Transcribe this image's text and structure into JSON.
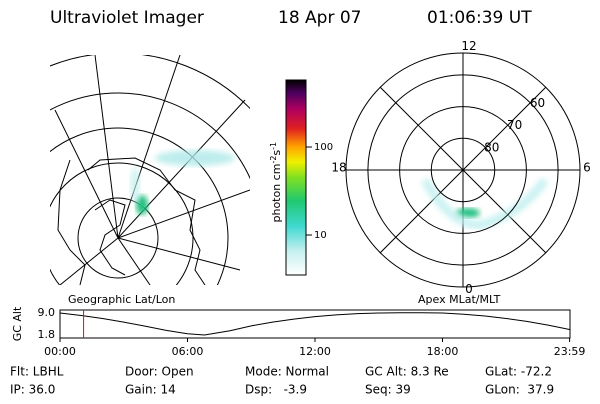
{
  "header": {
    "title": "Ultraviolet Imager",
    "date": "18 Apr 07",
    "time": "01:06:39 UT"
  },
  "colorbar": {
    "label_parts": [
      "photon cm",
      "-2",
      "s",
      "-1"
    ],
    "ticks": [
      10,
      100
    ],
    "log": true
  },
  "left_panel": {
    "label": "Geographic Lat/Lon"
  },
  "right_panel": {
    "label": "Apex MLat/MLT",
    "rings": [
      80,
      70,
      60
    ],
    "mlt_labels": [
      12,
      18,
      6,
      0
    ]
  },
  "altitude_plot": {
    "ylabel": "GC Alt",
    "yticks": [
      9.0,
      1.8
    ],
    "ytick_labels": [
      "9.0",
      "1.8"
    ],
    "xticks": [
      {
        "value": 0,
        "label": "00:00"
      },
      {
        "value": 6,
        "label": "06:00"
      },
      {
        "value": 12,
        "label": "12:00"
      },
      {
        "value": 18,
        "label": "18:00"
      },
      {
        "value": 23.98,
        "label": "23:59"
      }
    ],
    "x": [
      0,
      1,
      2,
      3,
      4,
      5,
      6,
      6.8,
      8,
      9,
      10,
      11,
      12,
      13,
      14,
      15,
      16,
      17,
      18,
      19,
      20,
      21,
      22,
      23,
      23.98
    ],
    "values": [
      9.0,
      8.2,
      7.2,
      6.0,
      4.7,
      3.3,
      2.2,
      1.8,
      3.2,
      4.8,
      6.0,
      7.0,
      7.8,
      8.4,
      8.8,
      9.0,
      9.1,
      9.1,
      9.0,
      8.6,
      8.0,
      7.2,
      6.2,
      5.0,
      3.6
    ],
    "current_time": 1.11,
    "marker_color": "#ff0000"
  },
  "info": [
    [
      "Flt: LBHL",
      "Door: Open",
      "Mode: Normal",
      "GC Alt: 8.3 Re",
      "GLat: -72.2"
    ],
    [
      "IP: 36.0",
      "Gain: 14",
      "Dsp:   -3.9",
      "Seq: 39",
      "GLon:  37.9"
    ]
  ]
}
